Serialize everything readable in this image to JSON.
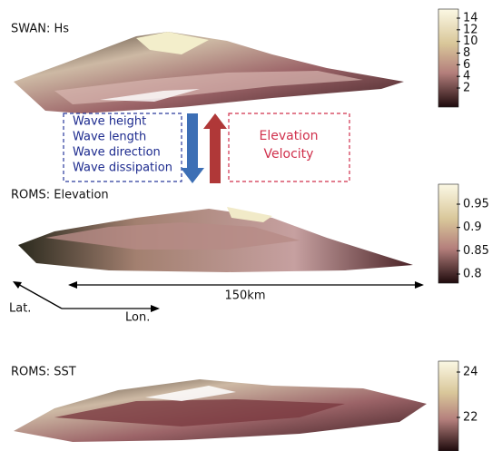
{
  "panels": [
    {
      "label": "SWAN: Hs",
      "colorbar_ticks": [
        14,
        12,
        10,
        8,
        6,
        4,
        2
      ]
    },
    {
      "label": "ROMS: Elevation",
      "colorbar_ticks": [
        0.95,
        0.9,
        0.85,
        0.8
      ]
    },
    {
      "label": "ROMS: SST",
      "colorbar_ticks": [
        24,
        22
      ]
    }
  ],
  "input_box": {
    "items": [
      "Wave height",
      "Wave length",
      "Wave direction",
      "Wave dissipation"
    ]
  },
  "output_box": {
    "items": [
      "Elevation",
      "Velocity"
    ]
  },
  "scale_label": "150km",
  "axes": {
    "lat": "Lat.",
    "lon": "Lon."
  }
}
